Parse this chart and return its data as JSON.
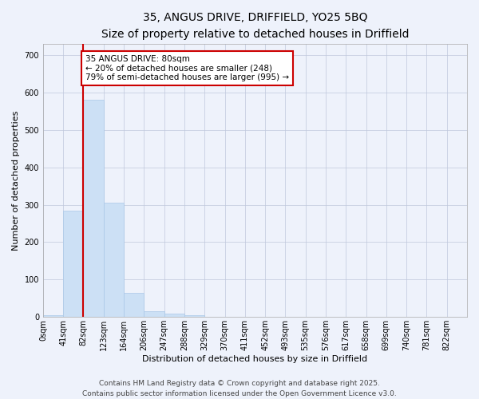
{
  "title": "35, ANGUS DRIVE, DRIFFIELD, YO25 5BQ",
  "subtitle": "Size of property relative to detached houses in Driffield",
  "xlabel": "Distribution of detached houses by size in Driffield",
  "ylabel": "Number of detached properties",
  "bar_color": "#cce0f5",
  "bar_edge_color": "#aac8e8",
  "categories": [
    "0sqm",
    "41sqm",
    "82sqm",
    "123sqm",
    "164sqm",
    "206sqm",
    "247sqm",
    "288sqm",
    "329sqm",
    "370sqm",
    "411sqm",
    "452sqm",
    "493sqm",
    "535sqm",
    "576sqm",
    "617sqm",
    "658sqm",
    "699sqm",
    "740sqm",
    "781sqm",
    "822sqm"
  ],
  "values": [
    5,
    285,
    580,
    305,
    65,
    15,
    10,
    5,
    0,
    0,
    0,
    0,
    0,
    0,
    0,
    0,
    0,
    0,
    0,
    0,
    0
  ],
  "ylim": [
    0,
    730
  ],
  "yticks": [
    0,
    100,
    200,
    300,
    400,
    500,
    600,
    700
  ],
  "property_line_bin": 2,
  "property_label": "35 ANGUS DRIVE: 80sqm",
  "annotation_line1": "← 20% of detached houses are smaller (248)",
  "annotation_line2": "79% of semi-detached houses are larger (995) →",
  "annotation_box_color": "#cc0000",
  "footer_line1": "Contains HM Land Registry data © Crown copyright and database right 2025.",
  "footer_line2": "Contains public sector information licensed under the Open Government Licence v3.0.",
  "background_color": "#eef2fb",
  "grid_color": "#c0c8dc",
  "title_fontsize": 10,
  "subtitle_fontsize": 9,
  "axis_label_fontsize": 8,
  "tick_fontsize": 7,
  "annotation_fontsize": 7.5,
  "footer_fontsize": 6.5
}
